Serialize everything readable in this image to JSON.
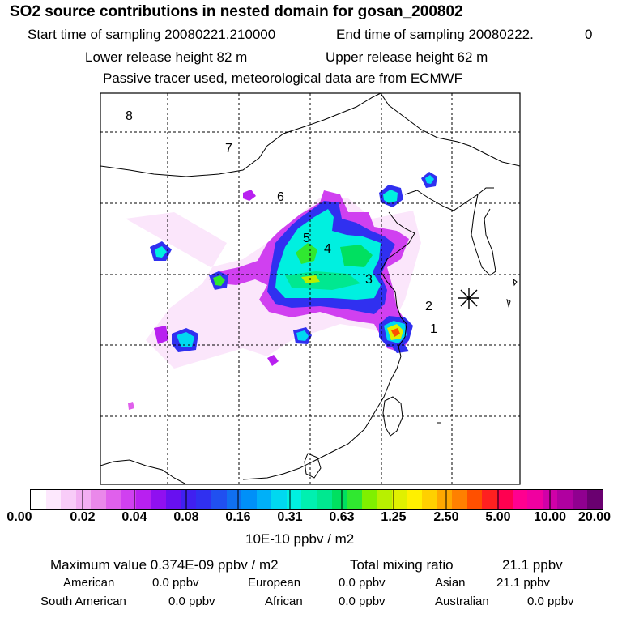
{
  "header": {
    "title": "SO2 source contributions in nested domain for gosan_200802",
    "start_label": "Start time of sampling 20080221.210000",
    "end_label": "End time of sampling 20080222.",
    "end_suffix": "0",
    "lower_release": "Lower release height   82 m",
    "upper_release": "Upper release height   62 m",
    "note": "Passive tracer used, meteorological data are from ECMWF"
  },
  "map": {
    "region_labels": [
      "8",
      "7",
      "6",
      "5",
      "4",
      "3",
      "2",
      "1"
    ],
    "receptor_marker": "asterisk"
  },
  "colorbar": {
    "tick_labels": [
      "0.00",
      "0.02",
      "0.04",
      "0.08",
      "0.16",
      "0.31",
      "0.63",
      "1.25",
      "2.50",
      "5.00",
      "10.00",
      "20.00"
    ],
    "colors": [
      "#ffffff",
      "#fde8fd",
      "#f8ccf8",
      "#f2aef2",
      "#ea88ea",
      "#e060ec",
      "#d040f0",
      "#b820f0",
      "#9010f0",
      "#6810f0",
      "#4020f0",
      "#3030f0",
      "#2050f0",
      "#1070f0",
      "#0090f8",
      "#00b0f8",
      "#00d8f0",
      "#00f0e0",
      "#00f0b0",
      "#00e890",
      "#00e060",
      "#30e830",
      "#80f000",
      "#b8f000",
      "#e0f000",
      "#fff000",
      "#ffd000",
      "#ffa800",
      "#ff8000",
      "#ff5000",
      "#ff2020",
      "#ff0050",
      "#ff0090",
      "#f000a0",
      "#d000a8",
      "#b000a0",
      "#900090",
      "#6a0070"
    ],
    "unit": "10E-10 ppbv / m2"
  },
  "summary": {
    "max_value": "Maximum value  0.374E-09 ppbv / m2",
    "total_mixing": "Total mixing ratio",
    "total_value": "21.1 ppbv",
    "american_label": "American",
    "american_value": "0.0 ppbv",
    "european_label": "European",
    "european_value": "0.0 ppbv",
    "asian_label": "Asian",
    "asian_value": "21.1 ppbv",
    "south_american_label": "South American",
    "south_american_value": "0.0 ppbv",
    "african_label": "African",
    "african_value": "0.0 ppbv",
    "australian_label": "Australian",
    "australian_value": "0.0 ppbv"
  }
}
